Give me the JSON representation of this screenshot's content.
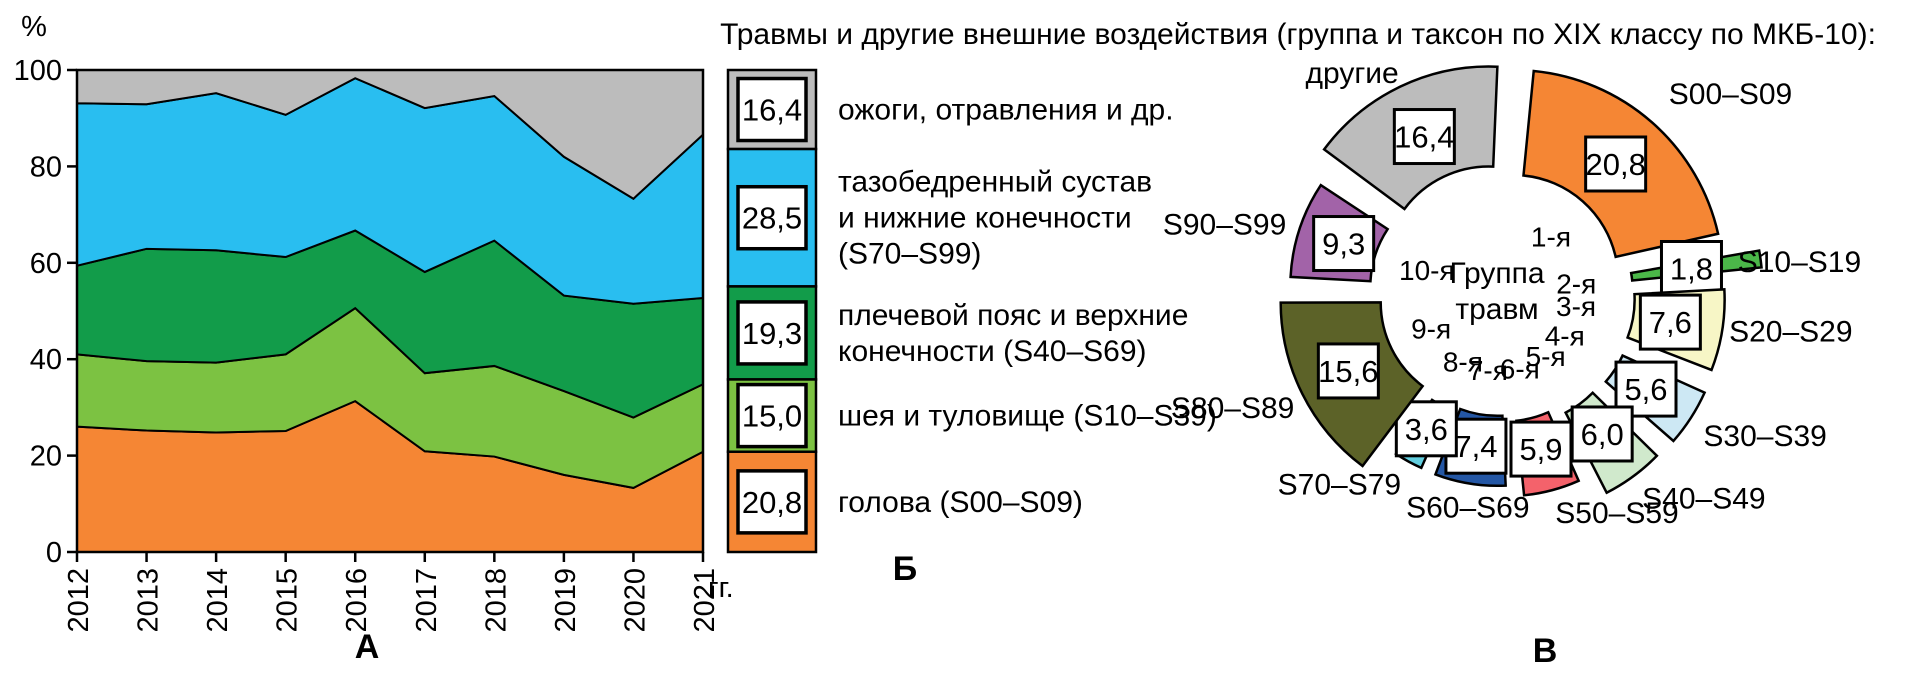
{
  "title": "Травмы и другие внешние воздействия (группа и таксон по XIX классу по МКБ-10):",
  "chart_data": [
    {
      "type": "area",
      "panel": "А",
      "stacked": true,
      "ylabel": "%",
      "xlabel": "гг.",
      "ylim": [
        0,
        100
      ],
      "yticks": [
        0,
        20,
        40,
        60,
        80,
        100
      ],
      "x": [
        "2012",
        "2013",
        "2014",
        "2015",
        "2016",
        "2017",
        "2018",
        "2019",
        "2020",
        "2021"
      ],
      "series": [
        {
          "name": "голова (S00–S09)",
          "color": "#F58634",
          "values": [
            26.0,
            25.2,
            24.8,
            25.1,
            31.3,
            20.9,
            19.8,
            16.0,
            13.3,
            20.8
          ]
        },
        {
          "name": "шея и туловище (S10–S39)",
          "color": "#7CC242",
          "values": [
            15.0,
            14.4,
            14.5,
            15.9,
            19.3,
            16.2,
            18.8,
            17.4,
            14.6,
            14.0
          ]
        },
        {
          "name": "плечевой пояс и верхние конечности (S40–S69)",
          "color": "#129C4A",
          "values": [
            18.4,
            23.3,
            23.3,
            20.2,
            16.1,
            21.0,
            26.0,
            19.8,
            23.6,
            17.9
          ]
        },
        {
          "name": "тазобедренный сустав и нижние конечности (S70–S99)",
          "color": "#29BEF0",
          "values": [
            33.7,
            30.0,
            32.6,
            29.5,
            31.6,
            34.0,
            30.0,
            28.8,
            21.8,
            33.9
          ]
        },
        {
          "name": "ожоги, отравления и др.",
          "color": "#BCBCBC",
          "values": [
            6.9,
            7.1,
            4.8,
            9.3,
            1.7,
            7.9,
            5.4,
            18.0,
            26.7,
            13.4
          ]
        }
      ]
    },
    {
      "type": "bar",
      "panel": "Б",
      "segments": [
        {
          "value": 16.4,
          "value_label": "16,4",
          "color": "#BCBCBC",
          "lines": [
            "ожоги, отравления и др."
          ]
        },
        {
          "value": 28.5,
          "value_label": "28,5",
          "color": "#29BEF0",
          "lines": [
            "тазобедренный сустав",
            "и нижние конечности",
            "(S70–S99)"
          ]
        },
        {
          "value": 19.3,
          "value_label": "19,3",
          "color": "#129C4A",
          "lines": [
            "плечевой пояс и верхние",
            "конечности (S40–S69)"
          ]
        },
        {
          "value": 15.0,
          "value_label": "15,0",
          "color": "#7CC242",
          "lines": [
            "шея и туловище (S10–S39)"
          ]
        },
        {
          "value": 20.8,
          "value_label": "20,8",
          "color": "#F58634",
          "lines": [
            "голова (S00–S09)"
          ]
        }
      ]
    },
    {
      "type": "pie",
      "panel": "В",
      "center_label": [
        "Группа",
        "травм"
      ],
      "slices": [
        {
          "code": "S00–S09",
          "ordinal": "1-я",
          "value": 20.8,
          "value_label": "20,8",
          "color": "#F58634"
        },
        {
          "code": "S10–S19",
          "ordinal": "2-я",
          "value": 1.8,
          "value_label": "1,8",
          "color": "#4BB749"
        },
        {
          "code": "S20–S29",
          "ordinal": "3-я",
          "value": 7.6,
          "value_label": "7,6",
          "color": "#F7F6C6"
        },
        {
          "code": "S30–S39",
          "ordinal": "4-я",
          "value": 5.6,
          "value_label": "5,6",
          "color": "#CDE8F4"
        },
        {
          "code": "S40–S49",
          "ordinal": "5-я",
          "value": 6.0,
          "value_label": "6,0",
          "color": "#D0E9CC"
        },
        {
          "code": "S50–S59",
          "ordinal": "6-я",
          "value": 5.9,
          "value_label": "5,9",
          "color": "#F4626B"
        },
        {
          "code": "S60–S69",
          "ordinal": "7-я",
          "value": 7.4,
          "value_label": "7,4",
          "color": "#2457A5"
        },
        {
          "code": "S70–S79",
          "ordinal": "8-я",
          "value": 3.6,
          "value_label": "3,6",
          "color": "#62CEDF"
        },
        {
          "code": "S80–S89",
          "ordinal": "9-я",
          "value": 15.6,
          "value_label": "15,6",
          "color": "#5C6228"
        },
        {
          "code": "S90–S99",
          "ordinal": "10-я",
          "value": 9.3,
          "value_label": "9,3",
          "color": "#A263A8"
        },
        {
          "code": "другие",
          "ordinal": null,
          "value": 16.4,
          "value_label": "16,4",
          "color": "#BCBCBC"
        }
      ]
    }
  ]
}
